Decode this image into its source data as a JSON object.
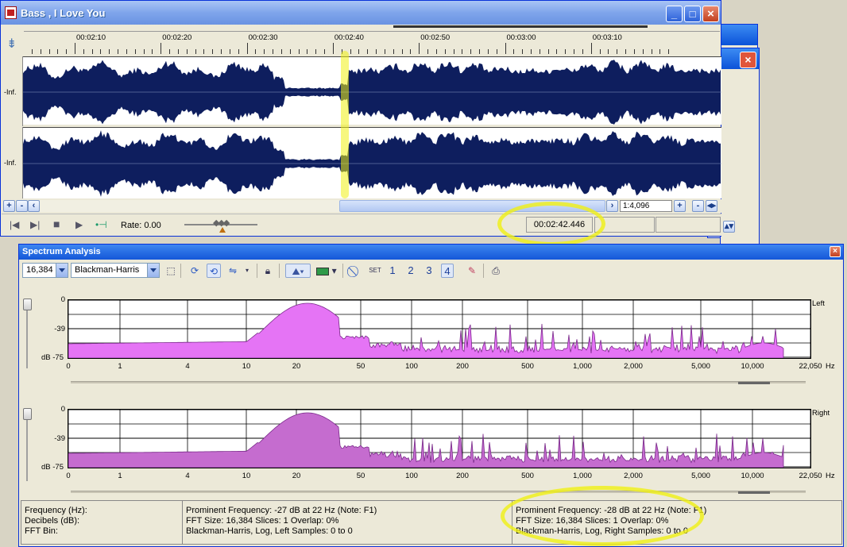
{
  "wave_window": {
    "title": "Bass , I Love You",
    "minimize_glyph": "_",
    "maximize_glyph": "□",
    "close_glyph": "×",
    "timeline_labels": [
      "00:02:10",
      "00:02:20",
      "00:02:30",
      "00:02:40",
      "00:02:50",
      "00:03:00",
      "00:03:10"
    ],
    "channel_labels": [
      "-Inf.",
      "-Inf."
    ],
    "zoom_ratio": "1:4,096",
    "rate_label": "Rate: 0.00",
    "cursor_time": "00:02:42.446",
    "plus_glyph": "+",
    "minus_glyph": "-",
    "icons": [
      "snap-icon",
      "go-to-start-icon",
      "go-to-end-icon",
      "stop-icon",
      "play-icon",
      "loop-icon",
      "scroll-left-icon",
      "scroll-right-icon",
      "zoom-in-icon",
      "zoom-out-icon"
    ]
  },
  "background_windows": {
    "close_glyph": "×"
  },
  "spectrum_window": {
    "title": "Spectrum Analysis",
    "close_glyph": "×",
    "fft_size": "16,384",
    "window_function": "Blackman-Harris",
    "set_label": "SET",
    "slot_buttons": [
      "1",
      "2",
      "3",
      "4"
    ],
    "active_slot": "4",
    "db_labels": [
      "0",
      "-39",
      "dB -75"
    ],
    "x_tick_labels": [
      "0",
      "1",
      "4",
      "10",
      "20",
      "50",
      "100",
      "200",
      "500",
      "1,000",
      "2,000",
      "5,000",
      "10,000",
      "22,050"
    ],
    "hz_unit": "Hz",
    "channels": [
      "Left",
      "Right"
    ],
    "plot_fill_colors": [
      "#e574f5",
      "#c56ccf"
    ],
    "status": {
      "left": [
        "Frequency (Hz):",
        "Decibels (dB):",
        "FFT Bin:"
      ],
      "left_channel": [
        "Prominent Frequency: -27 dB at 22 Hz (Note: F1)",
        "FFT Size: 16,384  Slices: 1  Overlap: 0%",
        "Blackman-Harris, Log, Left  Samples: 0 to 0"
      ],
      "right_channel": [
        "Prominent Frequency: -28 dB at 22 Hz (Note: F1)",
        "FFT Size: 16,384  Slices: 1  Overlap: 0%",
        "Blackman-Harris, Log, Right  Samples: 0 to 0"
      ]
    }
  },
  "colors": {
    "waveform": "#0e1e5e",
    "title_blue": "#0b52d8",
    "highlight": "#f0f014"
  }
}
